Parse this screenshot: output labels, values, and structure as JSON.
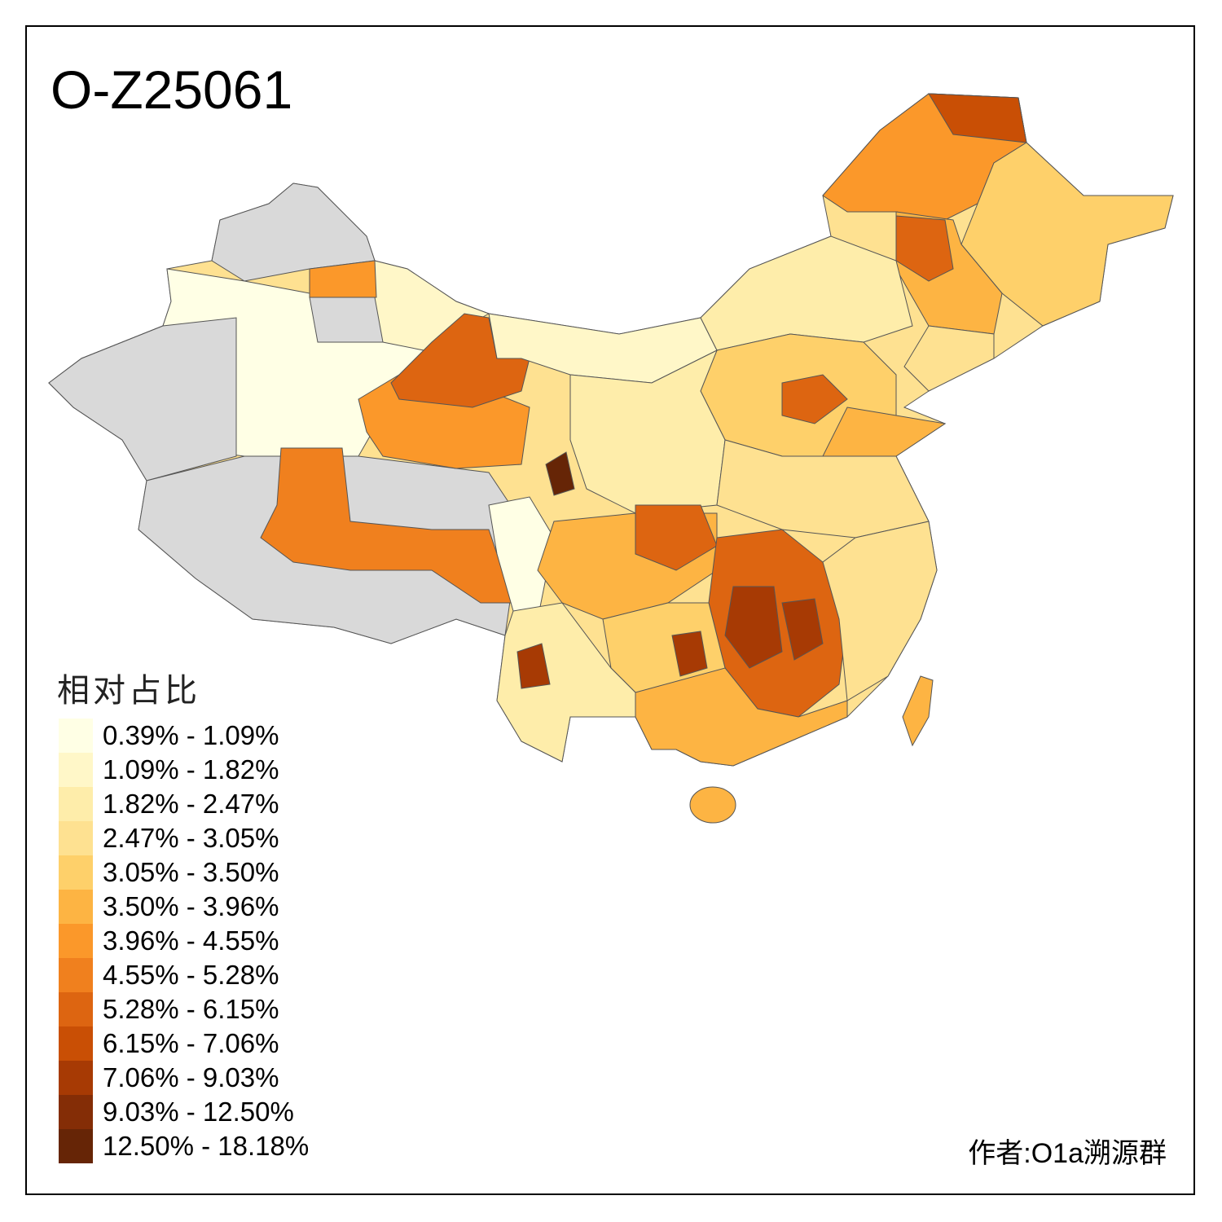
{
  "title": "O-Z25061",
  "legend": {
    "title": "相对占比",
    "bins": [
      {
        "label": "0.39% - 1.09%",
        "color": "#FFFFE5"
      },
      {
        "label": "1.09% - 1.82%",
        "color": "#FFF7C8"
      },
      {
        "label": "1.82% - 2.47%",
        "color": "#FEEDAA"
      },
      {
        "label": "2.47% - 3.05%",
        "color": "#FEE191"
      },
      {
        "label": "3.05% - 3.50%",
        "color": "#FED06A"
      },
      {
        "label": "3.50% - 3.96%",
        "color": "#FDB443"
      },
      {
        "label": "3.96% - 4.55%",
        "color": "#FB982A"
      },
      {
        "label": "4.55% - 5.28%",
        "color": "#F0801E"
      },
      {
        "label": "5.28% - 6.15%",
        "color": "#DD6511"
      },
      {
        "label": "6.15% - 7.06%",
        "color": "#C94F05"
      },
      {
        "label": "7.06% - 9.03%",
        "color": "#A73A04"
      },
      {
        "label": "9.03% - 12.50%",
        "color": "#842D06"
      },
      {
        "label": "12.50% - 18.18%",
        "color": "#662506"
      }
    ],
    "no_data_color": "#D9D9D9"
  },
  "author": "作者:O1a溯源群"
}
